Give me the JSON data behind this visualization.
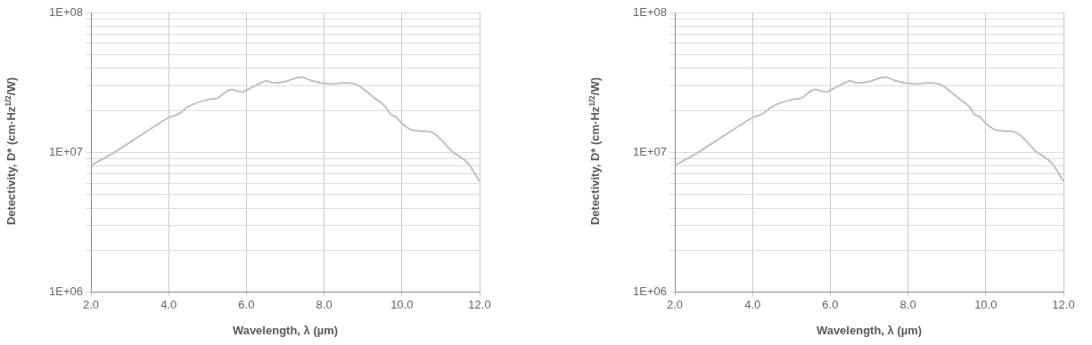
{
  "chart_data": [
    {
      "type": "line",
      "xlabel": "Wavelength, λ (µm)",
      "ylabel": "Detectivity, D* (cm·Hz$^{1/2}$/W)",
      "log": "y",
      "grid": true,
      "legend": false,
      "marker": "none",
      "line_style": "solid",
      "xlim": [
        2,
        12
      ],
      "xticks": [
        {
          "value": 2,
          "label": "2.0"
        },
        {
          "value": 4,
          "label": "4.0"
        },
        {
          "value": 6,
          "label": "6.0"
        },
        {
          "value": 8,
          "label": "8.0"
        },
        {
          "value": 10,
          "label": "10.0"
        },
        {
          "value": 12,
          "label": "12.0"
        }
      ],
      "ylim": [
        1000000,
        100000000
      ],
      "yticks": [
        {
          "value": 1000000,
          "label": "1E+06"
        },
        {
          "value": 2000000,
          "label": null
        },
        {
          "value": 3000000,
          "label": null
        },
        {
          "value": 4000000,
          "label": null
        },
        {
          "value": 5000000,
          "label": null
        },
        {
          "value": 6000000,
          "label": null
        },
        {
          "value": 7000000,
          "label": null
        },
        {
          "value": 8000000,
          "label": null
        },
        {
          "value": 9000000,
          "label": null
        },
        {
          "value": 10000000,
          "label": "1E+07"
        },
        {
          "value": 20000000,
          "label": null
        },
        {
          "value": 30000000,
          "label": null
        },
        {
          "value": 40000000,
          "label": null
        },
        {
          "value": 50000000,
          "label": null
        },
        {
          "value": 60000000,
          "label": null
        },
        {
          "value": 70000000,
          "label": null
        },
        {
          "value": 80000000,
          "label": null
        },
        {
          "value": 90000000,
          "label": null
        },
        {
          "value": 100000000,
          "label": "1E+08"
        }
      ],
      "series": [
        {
          "color": "#c0c0c0",
          "x": [
            2.0,
            2.5,
            3.0,
            3.5,
            3.75,
            4.0,
            4.25,
            4.5,
            5.0,
            5.25,
            5.6,
            5.9,
            6.0,
            6.4,
            6.5,
            6.7,
            7.0,
            7.4,
            7.7,
            8.0,
            8.2,
            8.5,
            8.8,
            9.0,
            9.3,
            9.6,
            9.7,
            9.85,
            10.0,
            10.2,
            10.5,
            10.75,
            11.0,
            11.3,
            11.5,
            11.7,
            12.0
          ],
          "values": [
            8100000,
            9600000,
            11800000,
            14500000,
            16100000,
            17700000,
            18800000,
            21200000,
            23800000,
            24400000,
            28100000,
            27000000,
            27800000,
            31600000,
            32400000,
            31400000,
            32100000,
            34500000,
            32400000,
            31100000,
            30800000,
            31400000,
            30800000,
            28500000,
            24400000,
            20900000,
            18800000,
            17900000,
            16100000,
            14700000,
            14200000,
            14000000,
            12400000,
            10100000,
            9300000,
            8400000,
            6200000
          ]
        }
      ]
    },
    {
      "type": "line",
      "xlabel": "Wavelength, λ (µm)",
      "ylabel": "Detectivity, D* (cm·Hz$^{1/2}$/W)",
      "log": "y",
      "grid": true,
      "legend": false,
      "marker": "none",
      "line_style": "solid",
      "xlim": [
        2,
        12
      ],
      "xticks": [
        {
          "value": 2,
          "label": "2.0"
        },
        {
          "value": 4,
          "label": "4.0"
        },
        {
          "value": 6,
          "label": "6.0"
        },
        {
          "value": 8,
          "label": "8.0"
        },
        {
          "value": 10,
          "label": "10.0"
        },
        {
          "value": 12,
          "label": "12.0"
        }
      ],
      "ylim": [
        1000000,
        100000000
      ],
      "yticks": [
        {
          "value": 1000000,
          "label": "1E+06"
        },
        {
          "value": 2000000,
          "label": null
        },
        {
          "value": 3000000,
          "label": null
        },
        {
          "value": 4000000,
          "label": null
        },
        {
          "value": 5000000,
          "label": null
        },
        {
          "value": 6000000,
          "label": null
        },
        {
          "value": 7000000,
          "label": null
        },
        {
          "value": 8000000,
          "label": null
        },
        {
          "value": 9000000,
          "label": null
        },
        {
          "value": 10000000,
          "label": "1E+07"
        },
        {
          "value": 20000000,
          "label": null
        },
        {
          "value": 30000000,
          "label": null
        },
        {
          "value": 40000000,
          "label": null
        },
        {
          "value": 50000000,
          "label": null
        },
        {
          "value": 60000000,
          "label": null
        },
        {
          "value": 70000000,
          "label": null
        },
        {
          "value": 80000000,
          "label": null
        },
        {
          "value": 90000000,
          "label": null
        },
        {
          "value": 100000000,
          "label": "1E+08"
        }
      ],
      "series": [
        {
          "color": "#c0c0c0",
          "x": [
            2.0,
            2.5,
            3.0,
            3.5,
            3.75,
            4.0,
            4.25,
            4.5,
            5.0,
            5.25,
            5.6,
            5.9,
            6.0,
            6.4,
            6.5,
            6.7,
            7.0,
            7.4,
            7.7,
            8.0,
            8.2,
            8.5,
            8.8,
            9.0,
            9.3,
            9.6,
            9.7,
            9.85,
            10.0,
            10.2,
            10.5,
            10.75,
            11.0,
            11.3,
            11.5,
            11.7,
            12.0
          ],
          "values": [
            8100000,
            9600000,
            11800000,
            14500000,
            16100000,
            17700000,
            18800000,
            21200000,
            23800000,
            24400000,
            28100000,
            27000000,
            27800000,
            31600000,
            32400000,
            31400000,
            32100000,
            34500000,
            32400000,
            31100000,
            30800000,
            31400000,
            30800000,
            28500000,
            24400000,
            20900000,
            18800000,
            17900000,
            16100000,
            14700000,
            14200000,
            14000000,
            12400000,
            10100000,
            9300000,
            8400000,
            6200000
          ]
        }
      ]
    }
  ]
}
